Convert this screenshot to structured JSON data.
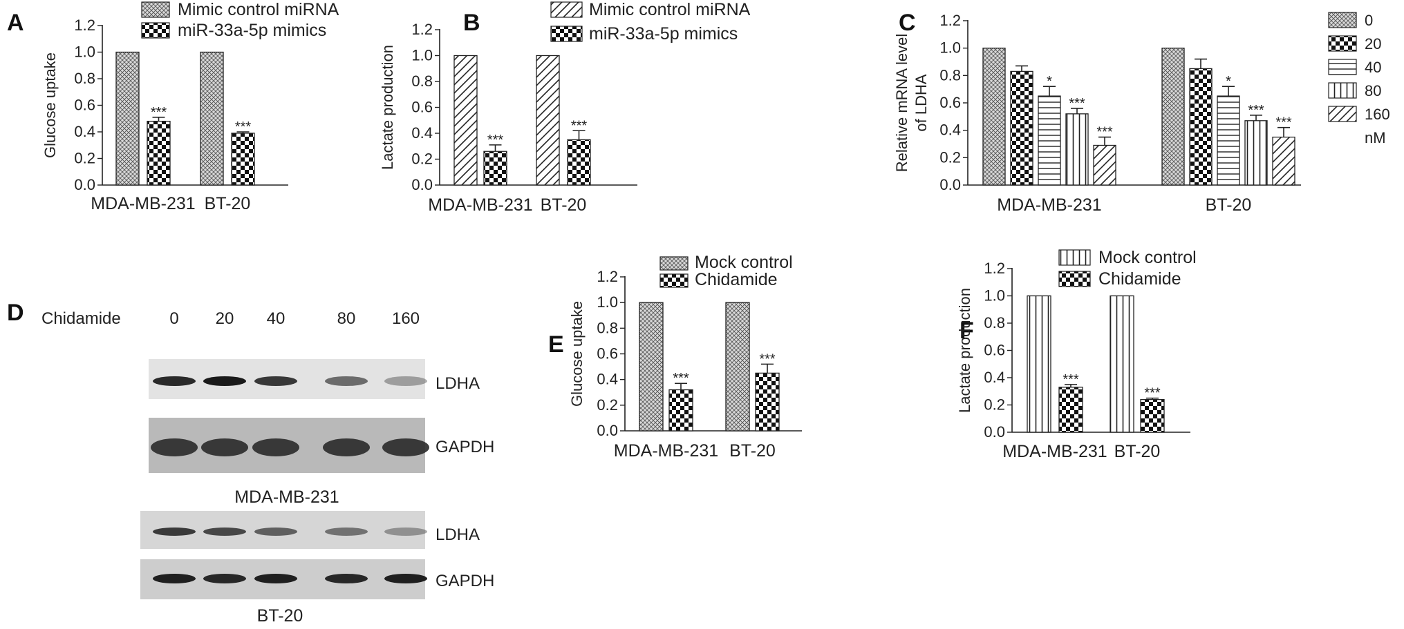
{
  "colors": {
    "ink": "#222222",
    "background": "#ffffff"
  },
  "blot": {
    "panel_label": "D",
    "treatment_label": "Chidamide",
    "concentrations": [
      "0",
      "20",
      "40",
      "80",
      "160"
    ],
    "cell_lines": [
      "MDA-MB-231",
      "BT-20"
    ],
    "bands": [
      "LDHA",
      "GAPDH"
    ],
    "ldha_intensity": {
      "MDA-MB-231": [
        0.92,
        1.0,
        0.85,
        0.6,
        0.35
      ],
      "BT-20": [
        0.85,
        0.78,
        0.65,
        0.55,
        0.38
      ]
    }
  },
  "chart_data": [
    {
      "panel": "A",
      "type": "bar",
      "categories": [
        "MDA-MB-231",
        "BT-20"
      ],
      "ylabel": "Glucose uptake",
      "ylim": [
        0,
        1.2
      ],
      "yticks": [
        "0.0",
        "0.2",
        "0.4",
        "0.6",
        "0.8",
        "1.0",
        "1.2"
      ],
      "legend_position": "top",
      "series": [
        {
          "name": "Mimic control miRNA",
          "pattern": "cross-hatch",
          "values": [
            1.0,
            1.0
          ],
          "errors": [
            0,
            0
          ],
          "sig": [
            "",
            ""
          ]
        },
        {
          "name": "miR-33a-5p mimics",
          "pattern": "checker",
          "values": [
            0.48,
            0.39
          ],
          "errors": [
            0.03,
            0.01
          ],
          "sig": [
            "***",
            "***"
          ]
        }
      ]
    },
    {
      "panel": "B",
      "type": "bar",
      "categories": [
        "MDA-MB-231",
        "BT-20"
      ],
      "ylabel": "Lactate production",
      "ylim": [
        0,
        1.2
      ],
      "yticks": [
        "0.0",
        "0.2",
        "0.4",
        "0.6",
        "0.8",
        "1.0",
        "1.2"
      ],
      "legend_position": "top",
      "series": [
        {
          "name": "Mimic control miRNA",
          "pattern": "diagonal",
          "values": [
            1.0,
            1.0
          ],
          "errors": [
            0,
            0
          ],
          "sig": [
            "",
            ""
          ]
        },
        {
          "name": "miR-33a-5p mimics",
          "pattern": "checker",
          "values": [
            0.26,
            0.35
          ],
          "errors": [
            0.05,
            0.07
          ],
          "sig": [
            "***",
            "***"
          ]
        }
      ]
    },
    {
      "panel": "C",
      "type": "bar",
      "categories": [
        "MDA-MB-231",
        "BT-20"
      ],
      "ylabel": [
        "Relative mRNA level",
        "of LDHA"
      ],
      "ylim": [
        0,
        1.2
      ],
      "yticks": [
        "0.0",
        "0.2",
        "0.4",
        "0.6",
        "0.8",
        "1.0",
        "1.2"
      ],
      "legend_position": "right",
      "legend_unit": "nM",
      "series": [
        {
          "name": "0",
          "pattern": "cross-hatch",
          "values": [
            1.0,
            1.0
          ],
          "errors": [
            0,
            0
          ],
          "sig": [
            "",
            ""
          ]
        },
        {
          "name": "20",
          "pattern": "checker",
          "values": [
            0.83,
            0.85
          ],
          "errors": [
            0.04,
            0.07
          ],
          "sig": [
            "",
            ""
          ]
        },
        {
          "name": "40",
          "pattern": "horizontal",
          "values": [
            0.65,
            0.65
          ],
          "errors": [
            0.07,
            0.07
          ],
          "sig": [
            "*",
            "*"
          ]
        },
        {
          "name": "80",
          "pattern": "vertical",
          "values": [
            0.52,
            0.47
          ],
          "errors": [
            0.04,
            0.04
          ],
          "sig": [
            "***",
            "***"
          ]
        },
        {
          "name": "160",
          "pattern": "diagonal",
          "values": [
            0.29,
            0.35
          ],
          "errors": [
            0.06,
            0.07
          ],
          "sig": [
            "***",
            "***"
          ]
        }
      ]
    },
    {
      "panel": "E",
      "type": "bar",
      "categories": [
        "MDA-MB-231",
        "BT-20"
      ],
      "ylabel": "Glucose uptake",
      "ylim": [
        0,
        1.2
      ],
      "yticks": [
        "0.0",
        "0.2",
        "0.4",
        "0.6",
        "0.8",
        "1.0",
        "1.2"
      ],
      "legend_position": "top",
      "series": [
        {
          "name": "Mock control",
          "pattern": "cross-hatch",
          "values": [
            1.0,
            1.0
          ],
          "errors": [
            0,
            0
          ],
          "sig": [
            "",
            ""
          ]
        },
        {
          "name": "Chidamide",
          "pattern": "checker",
          "values": [
            0.32,
            0.45
          ],
          "errors": [
            0.05,
            0.07
          ],
          "sig": [
            "***",
            "***"
          ]
        }
      ]
    },
    {
      "panel": "F",
      "type": "bar",
      "categories": [
        "MDA-MB-231",
        "BT-20"
      ],
      "ylabel": "Lactate production",
      "ylim": [
        0,
        1.2
      ],
      "yticks": [
        "0.0",
        "0.2",
        "0.4",
        "0.6",
        "0.8",
        "1.0",
        "1.2"
      ],
      "legend_position": "top",
      "series": [
        {
          "name": "Mock control",
          "pattern": "vertical",
          "values": [
            1.0,
            1.0
          ],
          "errors": [
            0,
            0
          ],
          "sig": [
            "",
            ""
          ]
        },
        {
          "name": "Chidamide",
          "pattern": "checker",
          "values": [
            0.33,
            0.24
          ],
          "errors": [
            0.02,
            0.01
          ],
          "sig": [
            "***",
            "***"
          ]
        }
      ]
    }
  ]
}
